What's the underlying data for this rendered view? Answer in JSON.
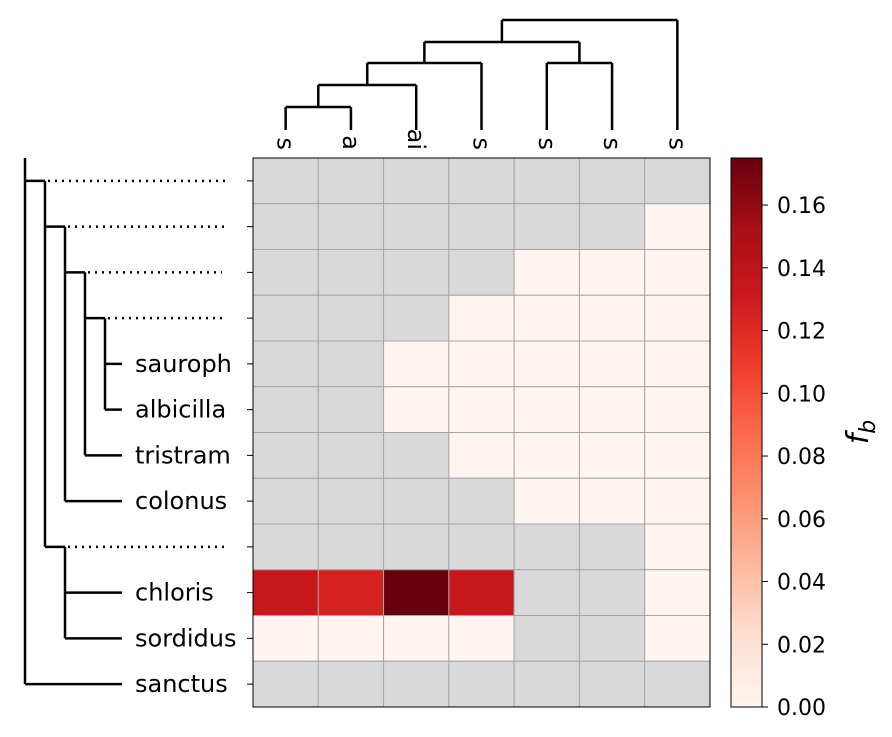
{
  "chart_data": {
    "type": "heatmap",
    "row_labels": [
      "",
      "",
      "",
      "",
      "sauroph",
      "albicilla",
      "tristram",
      "colonus",
      "",
      "chloris",
      "sordidus",
      "sanctus"
    ],
    "col_labels": [
      "s",
      "a",
      "ai",
      "s",
      "s",
      "s",
      "s"
    ],
    "values": [
      [
        null,
        null,
        null,
        null,
        null,
        null,
        null
      ],
      [
        null,
        null,
        null,
        null,
        null,
        null,
        0
      ],
      [
        null,
        null,
        null,
        null,
        0,
        0,
        0
      ],
      [
        null,
        null,
        null,
        0,
        0,
        0,
        0
      ],
      [
        null,
        null,
        0,
        0,
        0,
        0,
        0
      ],
      [
        null,
        null,
        0,
        0,
        0,
        0,
        0
      ],
      [
        null,
        null,
        null,
        0,
        0,
        0,
        0
      ],
      [
        null,
        null,
        null,
        null,
        0,
        0,
        0
      ],
      [
        null,
        null,
        null,
        null,
        null,
        null,
        0
      ],
      [
        0.134,
        0.125,
        0.175,
        0.134,
        null,
        null,
        0
      ],
      [
        0,
        0,
        0,
        0,
        null,
        null,
        0
      ],
      [
        null,
        null,
        null,
        null,
        null,
        null,
        null
      ]
    ],
    "missing_color": "#d9d9d9",
    "colormap": "Reds",
    "colorbar": {
      "label": "f_b",
      "label_main": "f",
      "label_sub": "b",
      "min": 0,
      "max": 0.175,
      "ticks": [
        "0.00",
        "0.02",
        "0.04",
        "0.06",
        "0.08",
        "0.10",
        "0.12",
        "0.14",
        "0.16"
      ],
      "tick_values": [
        0,
        0.02,
        0.04,
        0.06,
        0.08,
        0.1,
        0.12,
        0.14,
        0.16
      ]
    },
    "row_dendrogram": "tree with dotted branches for internal unlabeled rows",
    "col_dendrogram": "hierarchical tree above columns"
  }
}
